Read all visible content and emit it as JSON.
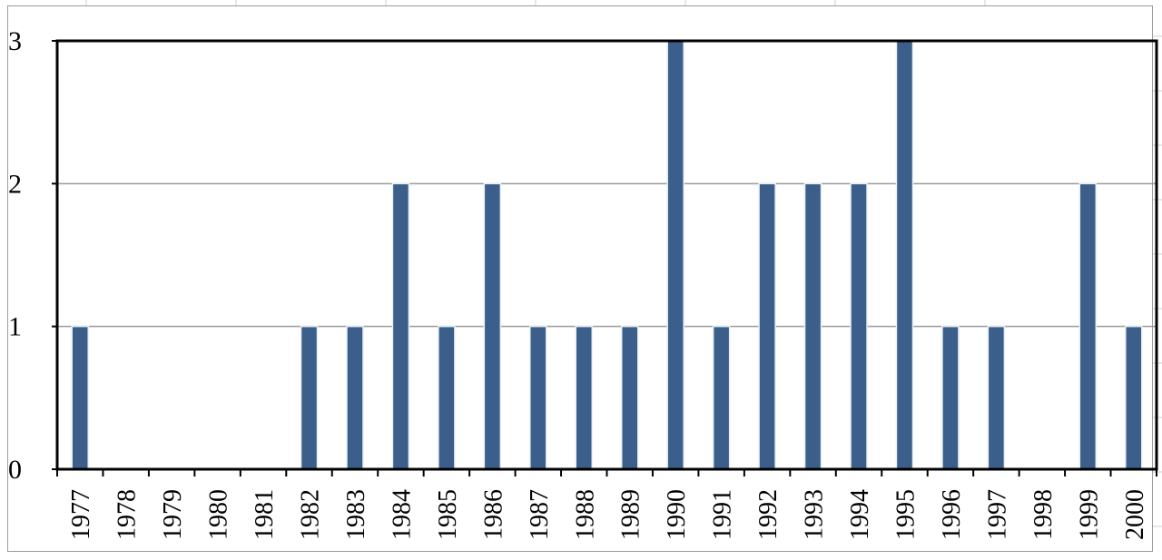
{
  "chart_data": {
    "type": "bar",
    "categories": [
      "1977",
      "1978",
      "1979",
      "1980",
      "1981",
      "1982",
      "1983",
      "1984",
      "1985",
      "1986",
      "1987",
      "1988",
      "1989",
      "1990",
      "1991",
      "1992",
      "1993",
      "1994",
      "1995",
      "1996",
      "1997",
      "1998",
      "1999",
      "2000"
    ],
    "values": [
      1,
      0,
      0,
      0,
      0,
      1,
      1,
      2,
      1,
      2,
      1,
      1,
      1,
      3,
      1,
      2,
      2,
      2,
      3,
      1,
      1,
      0,
      2,
      1
    ],
    "y_ticks": [
      "0",
      "1",
      "2",
      "3"
    ],
    "ylim": [
      0,
      3
    ],
    "grid": true,
    "legend": "none",
    "colors": {
      "bar": "#3b5f8a",
      "grid": "#9a9a9a",
      "axis": "#000000"
    }
  }
}
